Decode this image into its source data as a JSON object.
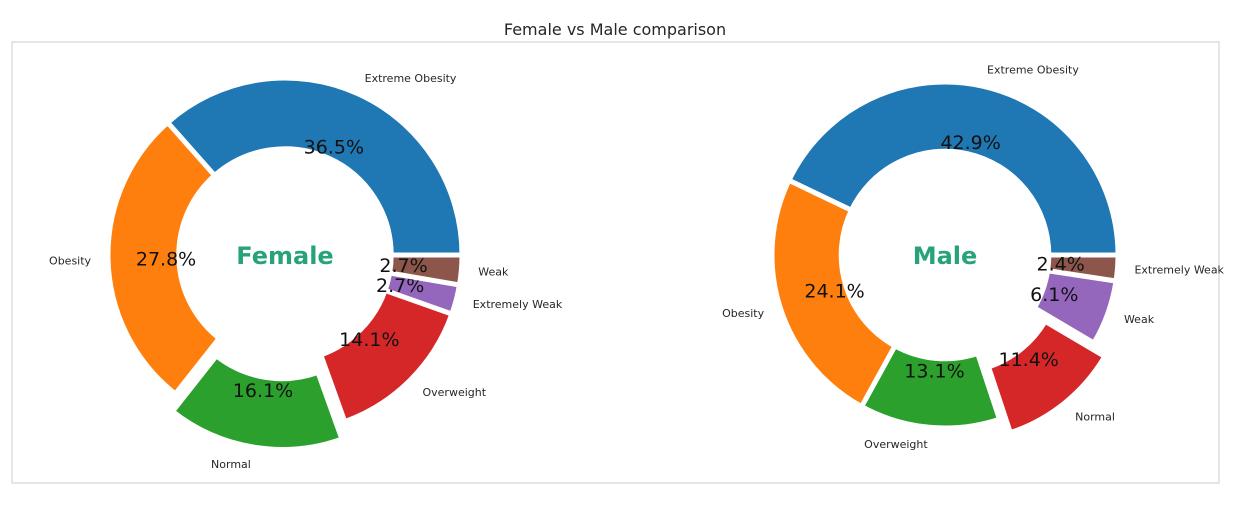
{
  "title": "Female vs Male comparison",
  "colors": {
    "frame": "#cccccc",
    "center_text": "#27a37a"
  },
  "chart_data": [
    {
      "type": "pie",
      "variant": "donut",
      "center_text": "Female",
      "start_angle_deg": 0,
      "direction": "counterclockwise",
      "slices": [
        {
          "label": "Extreme Obesity",
          "value": 36.5,
          "pct_text": "36.5%",
          "color": "#1f77b4",
          "explode": 0.0
        },
        {
          "label": "Obesity",
          "value": 27.8,
          "pct_text": "27.8%",
          "color": "#ff7f0e",
          "explode": 0.0
        },
        {
          "label": "Normal",
          "value": 16.1,
          "pct_text": "16.1%",
          "color": "#2ca02c",
          "explode": 0.1
        },
        {
          "label": "Overweight",
          "value": 14.1,
          "pct_text": "14.1%",
          "color": "#d62728",
          "explode": 0.0
        },
        {
          "label": "Extremely Weak",
          "value": 2.7,
          "pct_text": "2.7%",
          "color": "#9467bd",
          "explode": 0.0
        },
        {
          "label": "Weak",
          "value": 2.7,
          "pct_text": "2.7%",
          "color": "#8c564b",
          "explode": 0.0
        }
      ]
    },
    {
      "type": "pie",
      "variant": "donut",
      "center_text": "Male",
      "start_angle_deg": 0,
      "direction": "counterclockwise",
      "slices": [
        {
          "label": "Extreme Obesity",
          "value": 42.9,
          "pct_text": "42.9%",
          "color": "#1f77b4",
          "explode": 0.0
        },
        {
          "label": "Obesity",
          "value": 24.1,
          "pct_text": "24.1%",
          "color": "#ff7f0e",
          "explode": 0.0
        },
        {
          "label": "Overweight",
          "value": 13.1,
          "pct_text": "13.1%",
          "color": "#2ca02c",
          "explode": 0.0
        },
        {
          "label": "Normal",
          "value": 11.4,
          "pct_text": "11.4%",
          "color": "#d62728",
          "explode": 0.1
        },
        {
          "label": "Weak",
          "value": 6.1,
          "pct_text": "6.1%",
          "color": "#9467bd",
          "explode": 0.0
        },
        {
          "label": "Extremely Weak",
          "value": 2.4,
          "pct_text": "2.4%",
          "color": "#8c564b",
          "explode": 0.0
        }
      ]
    }
  ]
}
